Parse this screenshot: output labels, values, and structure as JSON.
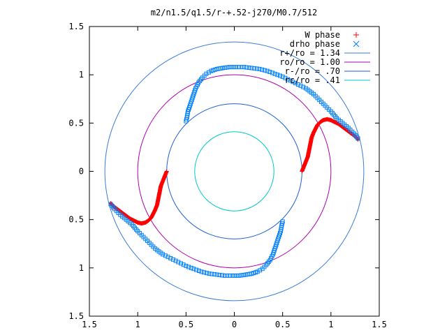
{
  "chart_data": {
    "type": "scatter",
    "title": "m2/n1.5/q1.5/r-+.52-j270/M0.7/512",
    "xlabel": "",
    "ylabel": "",
    "xlim": [
      -1.5,
      1.5
    ],
    "ylim": [
      -1.5,
      1.5
    ],
    "x_ticks": [
      "1.5",
      "1",
      "0.5",
      "0",
      "0.5",
      "1",
      "1.5"
    ],
    "y_ticks": [
      "1.5",
      "1",
      "0.5",
      "0",
      "0.5",
      "1",
      "1.5"
    ],
    "grid": false,
    "legend_position": "top-right",
    "legend": [
      {
        "label": "W phase",
        "color": "#ff0000",
        "marker": "plus"
      },
      {
        "label": "drho phase",
        "color": "#0080ff",
        "marker": "x"
      },
      {
        "label": "r+/ro = 1.34",
        "color": "#3a7dd6",
        "marker": "line"
      },
      {
        "label": "ro/ro = 1.00",
        "color": "#b000b0",
        "marker": "line"
      },
      {
        "label": "r-/ro = .70",
        "color": "#1f5fd0",
        "marker": "line"
      },
      {
        "label": "rc/ro = .41",
        "color": "#00c8c8",
        "marker": "line"
      }
    ],
    "circles": [
      {
        "r": 1.34,
        "color": "#3a7dd6"
      },
      {
        "r": 1.0,
        "color": "#b000b0"
      },
      {
        "r": 0.7,
        "color": "#1f5fd0"
      },
      {
        "r": 0.41,
        "color": "#00c8c8"
      }
    ],
    "w_phase_arms": [
      {
        "color": "#ff0000",
        "points": [
          [
            0.7,
            0.0
          ],
          [
            0.72,
            0.05
          ],
          [
            0.74,
            0.1
          ],
          [
            0.76,
            0.15
          ],
          [
            0.77,
            0.2
          ],
          [
            0.78,
            0.25
          ],
          [
            0.79,
            0.3
          ],
          [
            0.8,
            0.35
          ],
          [
            0.82,
            0.4
          ],
          [
            0.84,
            0.44
          ],
          [
            0.86,
            0.48
          ],
          [
            0.89,
            0.51
          ],
          [
            0.92,
            0.53
          ],
          [
            0.96,
            0.54
          ],
          [
            1.0,
            0.53
          ],
          [
            1.04,
            0.51
          ],
          [
            1.08,
            0.49
          ],
          [
            1.12,
            0.46
          ],
          [
            1.16,
            0.43
          ],
          [
            1.2,
            0.4
          ],
          [
            1.24,
            0.37
          ],
          [
            1.28,
            0.33
          ]
        ]
      },
      {
        "color": "#ff0000",
        "points": [
          [
            -0.7,
            0.0
          ],
          [
            -0.72,
            -0.05
          ],
          [
            -0.74,
            -0.1
          ],
          [
            -0.76,
            -0.15
          ],
          [
            -0.77,
            -0.2
          ],
          [
            -0.78,
            -0.25
          ],
          [
            -0.79,
            -0.3
          ],
          [
            -0.8,
            -0.35
          ],
          [
            -0.82,
            -0.4
          ],
          [
            -0.84,
            -0.44
          ],
          [
            -0.86,
            -0.48
          ],
          [
            -0.89,
            -0.51
          ],
          [
            -0.92,
            -0.53
          ],
          [
            -0.96,
            -0.54
          ],
          [
            -1.0,
            -0.53
          ],
          [
            -1.04,
            -0.51
          ],
          [
            -1.08,
            -0.49
          ],
          [
            -1.12,
            -0.46
          ],
          [
            -1.16,
            -0.43
          ],
          [
            -1.2,
            -0.4
          ],
          [
            -1.24,
            -0.37
          ],
          [
            -1.28,
            -0.33
          ]
        ]
      }
    ],
    "drho_phase_arms": [
      {
        "color": "#0080ff",
        "points": [
          [
            -0.5,
            0.52
          ],
          [
            -0.49,
            0.56
          ],
          [
            -0.48,
            0.62
          ],
          [
            -0.46,
            0.68
          ],
          [
            -0.44,
            0.74
          ],
          [
            -0.42,
            0.8
          ],
          [
            -0.4,
            0.86
          ],
          [
            -0.37,
            0.92
          ],
          [
            -0.33,
            0.97
          ],
          [
            -0.29,
            1.01
          ],
          [
            -0.24,
            1.04
          ],
          [
            -0.18,
            1.06
          ],
          [
            -0.12,
            1.07
          ],
          [
            -0.05,
            1.08
          ],
          [
            0.02,
            1.08
          ],
          [
            0.1,
            1.08
          ],
          [
            0.18,
            1.07
          ],
          [
            0.26,
            1.06
          ],
          [
            0.34,
            1.04
          ],
          [
            0.42,
            1.01
          ],
          [
            0.5,
            0.98
          ],
          [
            0.58,
            0.94
          ],
          [
            0.66,
            0.9
          ],
          [
            0.74,
            0.86
          ],
          [
            0.82,
            0.8
          ],
          [
            0.88,
            0.74
          ],
          [
            0.94,
            0.68
          ],
          [
            1.0,
            0.62
          ],
          [
            1.06,
            0.55
          ],
          [
            1.12,
            0.5
          ],
          [
            1.18,
            0.45
          ],
          [
            1.24,
            0.39
          ],
          [
            1.28,
            0.34
          ]
        ]
      },
      {
        "color": "#0080ff",
        "points": [
          [
            0.5,
            -0.52
          ],
          [
            0.49,
            -0.56
          ],
          [
            0.48,
            -0.62
          ],
          [
            0.46,
            -0.68
          ],
          [
            0.44,
            -0.74
          ],
          [
            0.42,
            -0.8
          ],
          [
            0.4,
            -0.86
          ],
          [
            0.37,
            -0.92
          ],
          [
            0.33,
            -0.97
          ],
          [
            0.29,
            -1.01
          ],
          [
            0.24,
            -1.04
          ],
          [
            0.18,
            -1.06
          ],
          [
            0.12,
            -1.07
          ],
          [
            0.05,
            -1.08
          ],
          [
            -0.02,
            -1.08
          ],
          [
            -0.1,
            -1.08
          ],
          [
            -0.18,
            -1.07
          ],
          [
            -0.26,
            -1.06
          ],
          [
            -0.34,
            -1.04
          ],
          [
            -0.42,
            -1.01
          ],
          [
            -0.5,
            -0.98
          ],
          [
            -0.58,
            -0.94
          ],
          [
            -0.66,
            -0.9
          ],
          [
            -0.74,
            -0.86
          ],
          [
            -0.82,
            -0.8
          ],
          [
            -0.88,
            -0.74
          ],
          [
            -0.94,
            -0.68
          ],
          [
            -1.0,
            -0.62
          ],
          [
            -1.06,
            -0.55
          ],
          [
            -1.12,
            -0.5
          ],
          [
            -1.18,
            -0.45
          ],
          [
            -1.24,
            -0.39
          ],
          [
            -1.28,
            -0.34
          ]
        ]
      }
    ]
  }
}
